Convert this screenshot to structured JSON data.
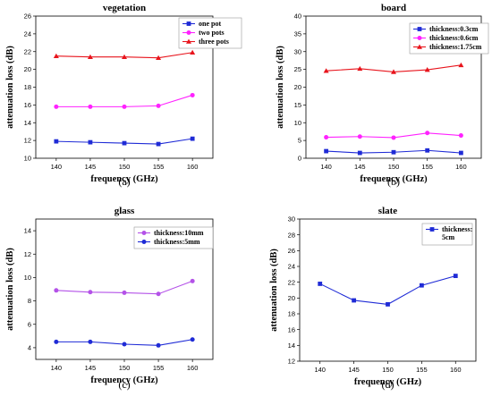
{
  "chart_data": [
    {
      "id": "a",
      "type": "line",
      "title": "vegetation",
      "caption": "(a)",
      "xlabel": "frequency (GHz)",
      "ylabel": "attenuation loss (dB)",
      "x": [
        140,
        145,
        150,
        155,
        160
      ],
      "xlim": [
        137,
        163
      ],
      "ylim": [
        10,
        26
      ],
      "yticks": [
        10,
        12,
        14,
        16,
        18,
        20,
        22,
        24,
        26
      ],
      "legend_position": "top-right",
      "series": [
        {
          "name": "one pot",
          "color": "#1f2bd6",
          "marker": "square",
          "values": [
            11.9,
            11.8,
            11.7,
            11.6,
            12.2
          ]
        },
        {
          "name": "two pots",
          "color": "#ff22ff",
          "marker": "circle",
          "values": [
            15.8,
            15.8,
            15.8,
            15.9,
            17.1
          ]
        },
        {
          "name": "three pots",
          "color": "#e8141c",
          "marker": "triangle",
          "values": [
            21.5,
            21.4,
            21.4,
            21.3,
            21.9
          ]
        }
      ]
    },
    {
      "id": "b",
      "type": "line",
      "title": "board",
      "caption": "(b)",
      "xlabel": "frequency (GHz)",
      "ylabel": "attenuation loss (dB)",
      "x": [
        140,
        145,
        150,
        155,
        160
      ],
      "xlim": [
        137,
        163
      ],
      "ylim": [
        0,
        40
      ],
      "yticks": [
        0,
        5,
        10,
        15,
        20,
        25,
        30,
        35,
        40
      ],
      "legend_position": "top-right",
      "series": [
        {
          "name": "thickness:0.3cm",
          "color": "#1f2bd6",
          "marker": "square",
          "values": [
            2.0,
            1.5,
            1.7,
            2.2,
            1.5
          ]
        },
        {
          "name": "thickness:0.6cm",
          "color": "#ff22ff",
          "marker": "circle",
          "values": [
            5.9,
            6.1,
            5.8,
            7.1,
            6.4
          ]
        },
        {
          "name": "thickness:1.75cm",
          "color": "#e8141c",
          "marker": "triangle",
          "values": [
            24.6,
            25.2,
            24.3,
            24.9,
            26.2
          ]
        }
      ]
    },
    {
      "id": "c",
      "type": "line",
      "title": "glass",
      "caption": "(c)",
      "xlabel": "frequency (GHz)",
      "ylabel": "attenuation loss (dB)",
      "x": [
        140,
        145,
        150,
        155,
        160
      ],
      "xlim": [
        137,
        163
      ],
      "ylim": [
        3,
        15
      ],
      "yticks": [
        4,
        6,
        8,
        10,
        12,
        14
      ],
      "legend_position": "top-right",
      "series": [
        {
          "name": "thickness:10mm",
          "color": "#b452e8",
          "marker": "circle",
          "values": [
            8.9,
            8.75,
            8.7,
            8.6,
            9.7
          ]
        },
        {
          "name": "thickness:5mm",
          "color": "#1f2bd6",
          "marker": "circle",
          "values": [
            4.5,
            4.5,
            4.3,
            4.2,
            4.7
          ]
        }
      ]
    },
    {
      "id": "d",
      "type": "line",
      "title": "slate",
      "caption": "(d)",
      "xlabel": "frequency (GHz)",
      "ylabel": "attenuation loss (dB)",
      "x": [
        140,
        145,
        150,
        155,
        160
      ],
      "xlim": [
        137,
        163
      ],
      "ylim": [
        12,
        30
      ],
      "yticks": [
        12,
        14,
        16,
        18,
        20,
        22,
        24,
        26,
        28,
        30
      ],
      "legend_position": "top-right",
      "series": [
        {
          "name": "thickness:\n5cm",
          "color": "#1f2bd6",
          "marker": "square",
          "values": [
            21.8,
            19.7,
            19.2,
            21.6,
            22.8
          ]
        }
      ]
    }
  ]
}
